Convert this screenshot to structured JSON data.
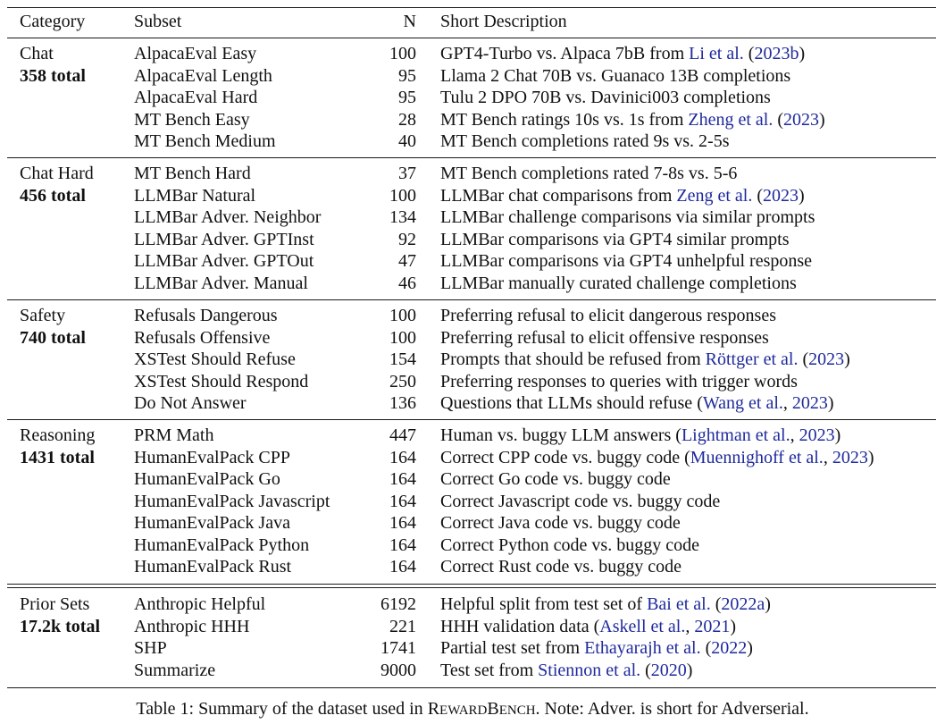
{
  "header": {
    "category": "Category",
    "subset": "Subset",
    "n": "N",
    "description": "Short Description"
  },
  "groups": [
    {
      "name": "Chat",
      "total": "358 total",
      "rows": [
        {
          "subset": "AlpacaEval Easy",
          "n": "100",
          "desc": "GPT4-Turbo vs. Alpaca 7bB from ",
          "cite": "Li et al.",
          "mid": " (",
          "year": "2023b",
          "end": ")"
        },
        {
          "subset": "AlpacaEval Length",
          "n": "95",
          "desc": "Llama 2 Chat 70B vs. Guanaco 13B completions"
        },
        {
          "subset": "AlpacaEval Hard",
          "n": "95",
          "desc": "Tulu 2 DPO 70B vs. Davinici003 completions"
        },
        {
          "subset": "MT Bench Easy",
          "n": "28",
          "desc": "MT Bench ratings 10s vs. 1s from ",
          "cite": "Zheng et al.",
          "mid": " (",
          "year": "2023",
          "end": ")"
        },
        {
          "subset": "MT Bench Medium",
          "n": "40",
          "desc": "MT Bench completions rated 9s vs. 2-5s"
        }
      ]
    },
    {
      "name": "Chat Hard",
      "total": "456 total",
      "rows": [
        {
          "subset": "MT Bench Hard",
          "n": "37",
          "desc": "MT Bench completions rated 7-8s vs. 5-6"
        },
        {
          "subset": "LLMBar Natural",
          "n": "100",
          "desc": "LLMBar chat comparisons from ",
          "cite": "Zeng et al.",
          "mid": " (",
          "year": "2023",
          "end": ")"
        },
        {
          "subset": "LLMBar Adver. Neighbor",
          "n": "134",
          "desc": "LLMBar challenge comparisons via similar prompts"
        },
        {
          "subset": "LLMBar Adver. GPTInst",
          "n": "92",
          "desc": "LLMBar comparisons via GPT4 similar prompts"
        },
        {
          "subset": "LLMBar Adver. GPTOut",
          "n": "47",
          "desc": "LLMBar comparisons via GPT4 unhelpful response"
        },
        {
          "subset": "LLMBar Adver. Manual",
          "n": "46",
          "desc": "LLMBar manually curated challenge completions"
        }
      ]
    },
    {
      "name": "Safety",
      "total": "740 total",
      "rows": [
        {
          "subset": "Refusals Dangerous",
          "n": "100",
          "desc": "Preferring refusal to elicit dangerous responses"
        },
        {
          "subset": "Refusals Offensive",
          "n": "100",
          "desc": "Preferring refusal to elicit offensive responses"
        },
        {
          "subset": "XSTest Should Refuse",
          "n": "154",
          "desc": "Prompts that should be refused from ",
          "cite": "Röttger et al.",
          "mid": " (",
          "year": "2023",
          "end": ")"
        },
        {
          "subset": "XSTest Should Respond",
          "n": "250",
          "desc": "Preferring responses to queries with trigger words"
        },
        {
          "subset": "Do Not Answer",
          "n": "136",
          "desc": "Questions that LLMs should refuse (",
          "cite": "Wang et al.",
          "mid": ", ",
          "year": "2023",
          "end": ")"
        }
      ]
    },
    {
      "name": "Reasoning",
      "total": "1431 total",
      "rows": [
        {
          "subset": "PRM Math",
          "n": "447",
          "desc": "Human vs. buggy LLM answers (",
          "cite": "Lightman et al.",
          "mid": ", ",
          "year": "2023",
          "end": ")"
        },
        {
          "subset": "HumanEvalPack CPP",
          "n": "164",
          "desc": "Correct CPP code vs. buggy code (",
          "cite": "Muennighoff et al.",
          "mid": ", ",
          "year": "2023",
          "end": ")"
        },
        {
          "subset": "HumanEvalPack Go",
          "n": "164",
          "desc": "Correct Go code vs. buggy code"
        },
        {
          "subset": "HumanEvalPack Javascript",
          "n": "164",
          "desc": "Correct Javascript code vs. buggy code"
        },
        {
          "subset": "HumanEvalPack Java",
          "n": "164",
          "desc": "Correct Java code vs. buggy code"
        },
        {
          "subset": "HumanEvalPack Python",
          "n": "164",
          "desc": "Correct Python code vs. buggy code"
        },
        {
          "subset": "HumanEvalPack Rust",
          "n": "164",
          "desc": "Correct Rust code vs. buggy code"
        }
      ]
    },
    {
      "name": "Prior Sets",
      "total": "17.2k total",
      "rows": [
        {
          "subset": "Anthropic Helpful",
          "n": "6192",
          "desc": "Helpful split from test set of ",
          "cite": "Bai et al.",
          "mid": " (",
          "year": "2022a",
          "end": ")"
        },
        {
          "subset": "Anthropic HHH",
          "n": "221",
          "desc": "HHH validation data (",
          "cite": "Askell et al.",
          "mid": ", ",
          "year": "2021",
          "end": ")"
        },
        {
          "subset": "SHP",
          "n": "1741",
          "desc": "Partial test set from ",
          "cite": "Ethayarajh et al.",
          "mid": " (",
          "year": "2022",
          "end": ")"
        },
        {
          "subset": "Summarize",
          "n": "9000",
          "desc": "Test set from ",
          "cite": "Stiennon et al.",
          "mid": " (",
          "year": "2020",
          "end": ")"
        }
      ]
    }
  ],
  "caption": {
    "prefix": "Table 1: Summary of the dataset used in ",
    "name_r": "R",
    "name_eward": "EWARD",
    "name_b": "B",
    "name_ench": "ENCH",
    "suffix": ". Note: Adver. is short for Adverserial."
  }
}
